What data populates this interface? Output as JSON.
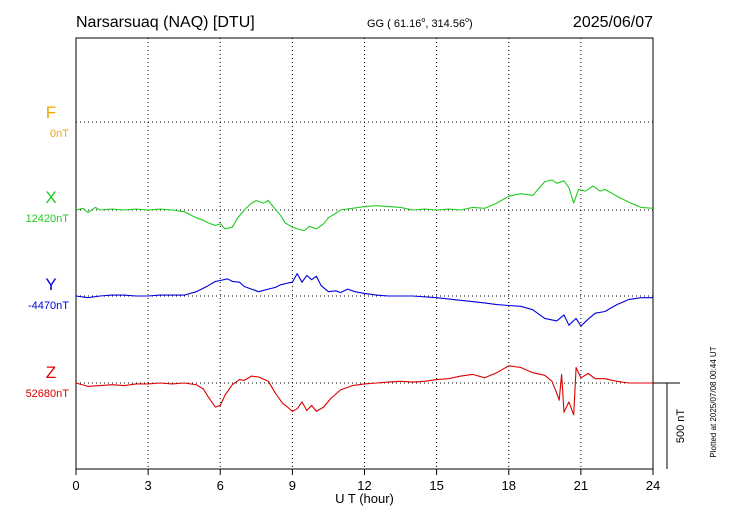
{
  "header": {
    "station": "Narsarsuaq (NAQ)  [DTU]",
    "coords_prefix": "GG ( 61.16",
    "coords_deg_a": "o",
    "coords_mid": ", 314.56",
    "coords_deg_b": "o",
    "coords_suffix": ")",
    "date": "2025/06/07"
  },
  "plotted_at": "Plotted at 2025/07/08 00:44 UT",
  "scale_label": "500 nT",
  "colors": {
    "F": "#f5a300",
    "X": "#22cc22",
    "Y": "#0000dd",
    "Z": "#dd0000",
    "axis": "#000000"
  },
  "chart_data": {
    "type": "line",
    "xlabel": "U T (hour)",
    "xlim": [
      0,
      24
    ],
    "xticks": [
      0,
      3,
      6,
      9,
      12,
      15,
      18,
      21,
      24
    ],
    "xtick_labels": [
      "0",
      "3",
      "6",
      "9",
      "12",
      "15",
      "18",
      "21",
      "24"
    ],
    "scale_bar_nT": 500,
    "series": [
      {
        "name": "F",
        "baseline_label": "0nT",
        "baseline_nT": 0,
        "points": []
      },
      {
        "name": "X",
        "baseline_label": "12420nT",
        "baseline_nT": 12420,
        "points": [
          [
            0,
            0
          ],
          [
            0.3,
            10
          ],
          [
            0.5,
            -15
          ],
          [
            0.8,
            15
          ],
          [
            1,
            0
          ],
          [
            1.5,
            5
          ],
          [
            2,
            0
          ],
          [
            2.5,
            5
          ],
          [
            3,
            0
          ],
          [
            3.5,
            5
          ],
          [
            4,
            0
          ],
          [
            4.5,
            -10
          ],
          [
            5,
            -45
          ],
          [
            5.3,
            -60
          ],
          [
            5.5,
            -75
          ],
          [
            5.8,
            -90
          ],
          [
            6,
            -80
          ],
          [
            6.2,
            -110
          ],
          [
            6.5,
            -100
          ],
          [
            6.7,
            -50
          ],
          [
            7,
            0
          ],
          [
            7.3,
            40
          ],
          [
            7.5,
            55
          ],
          [
            7.8,
            40
          ],
          [
            8,
            55
          ],
          [
            8.2,
            20
          ],
          [
            8.5,
            -30
          ],
          [
            8.7,
            -75
          ],
          [
            9,
            -100
          ],
          [
            9.2,
            -110
          ],
          [
            9.5,
            -120
          ],
          [
            9.7,
            -95
          ],
          [
            10,
            -110
          ],
          [
            10.3,
            -80
          ],
          [
            10.5,
            -45
          ],
          [
            10.8,
            -20
          ],
          [
            11,
            0
          ],
          [
            11.5,
            10
          ],
          [
            12,
            20
          ],
          [
            12.5,
            25
          ],
          [
            13,
            20
          ],
          [
            13.5,
            15
          ],
          [
            14,
            0
          ],
          [
            14.5,
            5
          ],
          [
            15,
            0
          ],
          [
            15.5,
            5
          ],
          [
            16,
            0
          ],
          [
            16.5,
            15
          ],
          [
            17,
            10
          ],
          [
            17.5,
            40
          ],
          [
            18,
            80
          ],
          [
            18.5,
            95
          ],
          [
            19,
            85
          ],
          [
            19.5,
            165
          ],
          [
            19.8,
            175
          ],
          [
            20,
            155
          ],
          [
            20.3,
            170
          ],
          [
            20.5,
            130
          ],
          [
            20.7,
            40
          ],
          [
            20.9,
            120
          ],
          [
            21.2,
            110
          ],
          [
            21.5,
            140
          ],
          [
            21.8,
            110
          ],
          [
            22,
            120
          ],
          [
            22.5,
            80
          ],
          [
            23,
            45
          ],
          [
            23.5,
            15
          ],
          [
            24,
            10
          ]
        ]
      },
      {
        "name": "Y",
        "baseline_label": "-4470nT",
        "baseline_nT": -4470,
        "points": [
          [
            0,
            0
          ],
          [
            0.5,
            -10
          ],
          [
            1,
            0
          ],
          [
            1.5,
            5
          ],
          [
            2,
            5
          ],
          [
            2.5,
            0
          ],
          [
            3,
            0
          ],
          [
            3.5,
            5
          ],
          [
            4,
            5
          ],
          [
            4.5,
            5
          ],
          [
            5,
            25
          ],
          [
            5.5,
            60
          ],
          [
            5.8,
            85
          ],
          [
            6,
            90
          ],
          [
            6.3,
            100
          ],
          [
            6.5,
            85
          ],
          [
            6.8,
            80
          ],
          [
            7,
            55
          ],
          [
            7.3,
            40
          ],
          [
            7.6,
            25
          ],
          [
            8,
            40
          ],
          [
            8.3,
            50
          ],
          [
            8.5,
            65
          ],
          [
            8.8,
            75
          ],
          [
            9,
            80
          ],
          [
            9.2,
            130
          ],
          [
            9.4,
            80
          ],
          [
            9.6,
            120
          ],
          [
            9.8,
            95
          ],
          [
            10,
            115
          ],
          [
            10.2,
            60
          ],
          [
            10.5,
            25
          ],
          [
            10.8,
            30
          ],
          [
            11,
            20
          ],
          [
            11.3,
            40
          ],
          [
            11.6,
            25
          ],
          [
            12,
            15
          ],
          [
            12.5,
            5
          ],
          [
            13,
            0
          ],
          [
            14,
            0
          ],
          [
            15,
            -10
          ],
          [
            16,
            -25
          ],
          [
            17,
            -40
          ],
          [
            17.5,
            -50
          ],
          [
            18,
            -55
          ],
          [
            18.5,
            -60
          ],
          [
            19,
            -80
          ],
          [
            19.5,
            -130
          ],
          [
            20,
            -145
          ],
          [
            20.3,
            -110
          ],
          [
            20.5,
            -170
          ],
          [
            20.8,
            -130
          ],
          [
            21,
            -175
          ],
          [
            21.3,
            -135
          ],
          [
            21.6,
            -100
          ],
          [
            22,
            -90
          ],
          [
            22.5,
            -50
          ],
          [
            23,
            -20
          ],
          [
            23.5,
            -10
          ],
          [
            24,
            -10
          ]
        ]
      },
      {
        "name": "Z",
        "baseline_label": "52680nT",
        "baseline_nT": 52680,
        "points": [
          [
            0,
            0
          ],
          [
            0.5,
            -20
          ],
          [
            1,
            -15
          ],
          [
            1.5,
            -10
          ],
          [
            2,
            -15
          ],
          [
            2.5,
            -5
          ],
          [
            3,
            -5
          ],
          [
            3.5,
            0
          ],
          [
            4,
            -5
          ],
          [
            4.5,
            0
          ],
          [
            5,
            -10
          ],
          [
            5.3,
            -35
          ],
          [
            5.5,
            -80
          ],
          [
            5.8,
            -140
          ],
          [
            6,
            -130
          ],
          [
            6.2,
            -70
          ],
          [
            6.5,
            -10
          ],
          [
            6.8,
            20
          ],
          [
            7,
            15
          ],
          [
            7.3,
            40
          ],
          [
            7.6,
            35
          ],
          [
            8,
            10
          ],
          [
            8.3,
            -60
          ],
          [
            8.6,
            -120
          ],
          [
            8.8,
            -140
          ],
          [
            9,
            -165
          ],
          [
            9.2,
            -150
          ],
          [
            9.4,
            -110
          ],
          [
            9.6,
            -160
          ],
          [
            9.8,
            -130
          ],
          [
            10,
            -165
          ],
          [
            10.3,
            -140
          ],
          [
            10.6,
            -90
          ],
          [
            11,
            -40
          ],
          [
            11.5,
            -15
          ],
          [
            12,
            -5
          ],
          [
            12.5,
            0
          ],
          [
            13,
            5
          ],
          [
            13.5,
            10
          ],
          [
            14,
            5
          ],
          [
            14.5,
            10
          ],
          [
            15,
            20
          ],
          [
            15.5,
            25
          ],
          [
            16,
            40
          ],
          [
            16.5,
            50
          ],
          [
            17,
            30
          ],
          [
            17.5,
            60
          ],
          [
            18,
            100
          ],
          [
            18.5,
            90
          ],
          [
            19,
            60
          ],
          [
            19.5,
            45
          ],
          [
            19.8,
            10
          ],
          [
            20,
            -60
          ],
          [
            20.1,
            -100
          ],
          [
            20.2,
            50
          ],
          [
            20.3,
            -170
          ],
          [
            20.5,
            -110
          ],
          [
            20.7,
            -185
          ],
          [
            20.8,
            90
          ],
          [
            21,
            30
          ],
          [
            21.3,
            55
          ],
          [
            21.6,
            25
          ],
          [
            22,
            25
          ],
          [
            22.5,
            10
          ],
          [
            23,
            0
          ],
          [
            23.5,
            0
          ],
          [
            24,
            0
          ]
        ]
      }
    ]
  }
}
